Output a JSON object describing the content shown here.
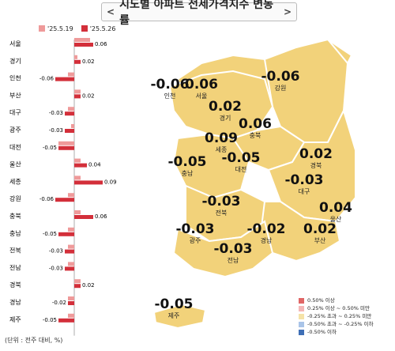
{
  "title": "시도별 아파트 전세가격지수 변동률",
  "title_arrows": [
    "<",
    ">"
  ],
  "legend_top": [
    {
      "label": "'25.5.19",
      "color": "#ef9a9a"
    },
    {
      "label": "'25.5.26",
      "color": "#d32f3a"
    }
  ],
  "unit_note": "(단위 : 전주 대비, %)",
  "map_legend": [
    {
      "label": "0.50% 이상",
      "color": "#e06666"
    },
    {
      "label": "0.25% 이상 ~ 0.50% 미만",
      "color": "#f4b6b6"
    },
    {
      "label": "-0.25% 초과 ~ 0.25% 미만",
      "color": "#f5e3a8"
    },
    {
      "label": "-0.50% 초과 ~ -0.25% 이하",
      "color": "#a9c4e8"
    },
    {
      "label": "-0.50% 이하",
      "color": "#3f6fb6"
    }
  ],
  "chart_data": {
    "type": "bar",
    "orientation": "horizontal",
    "categories": [
      "서울",
      "경기",
      "인천",
      "부산",
      "대구",
      "광주",
      "대전",
      "울산",
      "세종",
      "강원",
      "충북",
      "충남",
      "전북",
      "전남",
      "경북",
      "경남",
      "제주"
    ],
    "series": [
      {
        "name": "'25.5.19",
        "values": [
          0.05,
          0.01,
          -0.02,
          0.02,
          -0.02,
          -0.01,
          -0.05,
          0.02,
          0.02,
          -0.02,
          0.02,
          -0.02,
          -0.02,
          -0.02,
          0.02,
          -0.02,
          -0.02
        ]
      },
      {
        "name": "'25.5.26",
        "values": [
          0.06,
          0.02,
          -0.06,
          0.02,
          -0.03,
          -0.03,
          -0.05,
          0.04,
          0.09,
          -0.06,
          0.06,
          -0.05,
          -0.03,
          -0.03,
          0.02,
          -0.02,
          -0.05
        ]
      }
    ],
    "data_labels": [
      "0.06",
      "0.02",
      "-0.06",
      "0.02",
      "-0.03",
      "-0.03",
      "-0.05",
      "0.04",
      "0.09",
      "-0.06",
      "0.06",
      "-0.05",
      "-0.03",
      "-0.03",
      "0.02",
      "-0.02",
      "-0.05"
    ],
    "xlim": [
      -0.1,
      0.1
    ]
  },
  "map_labels": [
    {
      "region": "인천",
      "value": "-0.06"
    },
    {
      "region": "서울",
      "value": "0.06"
    },
    {
      "region": "강원",
      "value": "-0.06"
    },
    {
      "region": "경기",
      "value": "0.02"
    },
    {
      "region": "충북",
      "value": "0.06"
    },
    {
      "region": "세종",
      "value": "0.09"
    },
    {
      "region": "경북",
      "value": "0.02"
    },
    {
      "region": "충남",
      "value": "-0.05"
    },
    {
      "region": "대전",
      "value": "-0.05"
    },
    {
      "region": "대구",
      "value": "-0.03"
    },
    {
      "region": "전북",
      "value": "-0.03"
    },
    {
      "region": "울산",
      "value": "0.04"
    },
    {
      "region": "광주",
      "value": "-0.03"
    },
    {
      "region": "경남",
      "value": "-0.02"
    },
    {
      "region": "부산",
      "value": "0.02"
    },
    {
      "region": "전남",
      "value": "-0.03"
    },
    {
      "region": "제주",
      "value": "-0.05"
    }
  ]
}
